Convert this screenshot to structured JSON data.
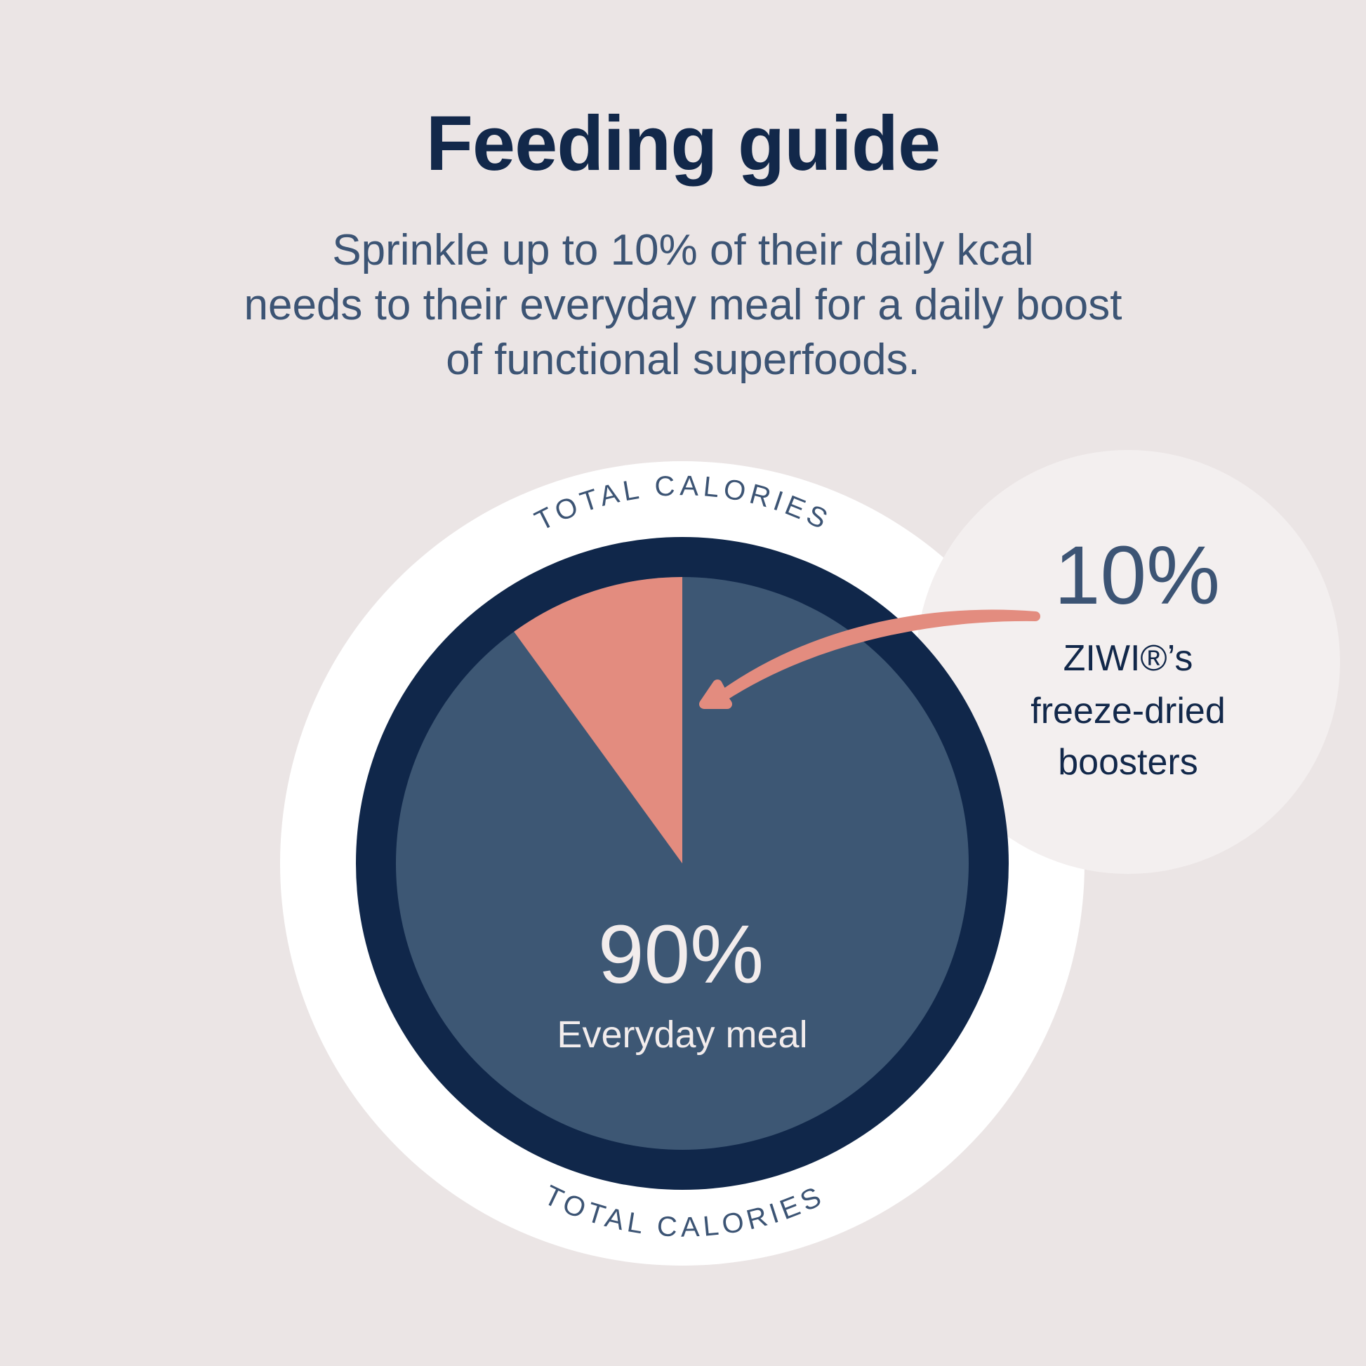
{
  "title": "Feeding guide",
  "subtitle_lines": [
    "Sprinkle up to 10% of their daily kcal",
    "needs to their everyday meal for a daily boost",
    "of functional superfoods."
  ],
  "ring_label_top": "TOTAL CALORIES",
  "ring_label_bottom": "TOTAL CALORIES",
  "colors": {
    "background": "#ebe5e5",
    "ring_white": "#ffffff",
    "pie_outer": "#10274a",
    "pie_meal": "#3d5774",
    "pie_booster": "#e38c7f",
    "callout_bubble": "#f3efef",
    "text_dark": "#12284a",
    "text_mid": "#3c5474",
    "text_light": "#f2ecec"
  },
  "chart_data": {
    "type": "pie",
    "title": "",
    "slices": [
      {
        "label": "Everyday meal",
        "value": 90,
        "value_label": "90%",
        "color": "#3d5774"
      },
      {
        "label": "ZIWI®’s freeze-dried boosters",
        "value": 10,
        "value_label": "10%",
        "color": "#e38c7f"
      }
    ],
    "booster_callout": {
      "value_label": "10%",
      "lines": [
        "ZIWI®’s",
        "freeze-dried",
        "boosters"
      ]
    },
    "meal_label": {
      "value_label": "90%",
      "text": "Everyday meal"
    }
  }
}
